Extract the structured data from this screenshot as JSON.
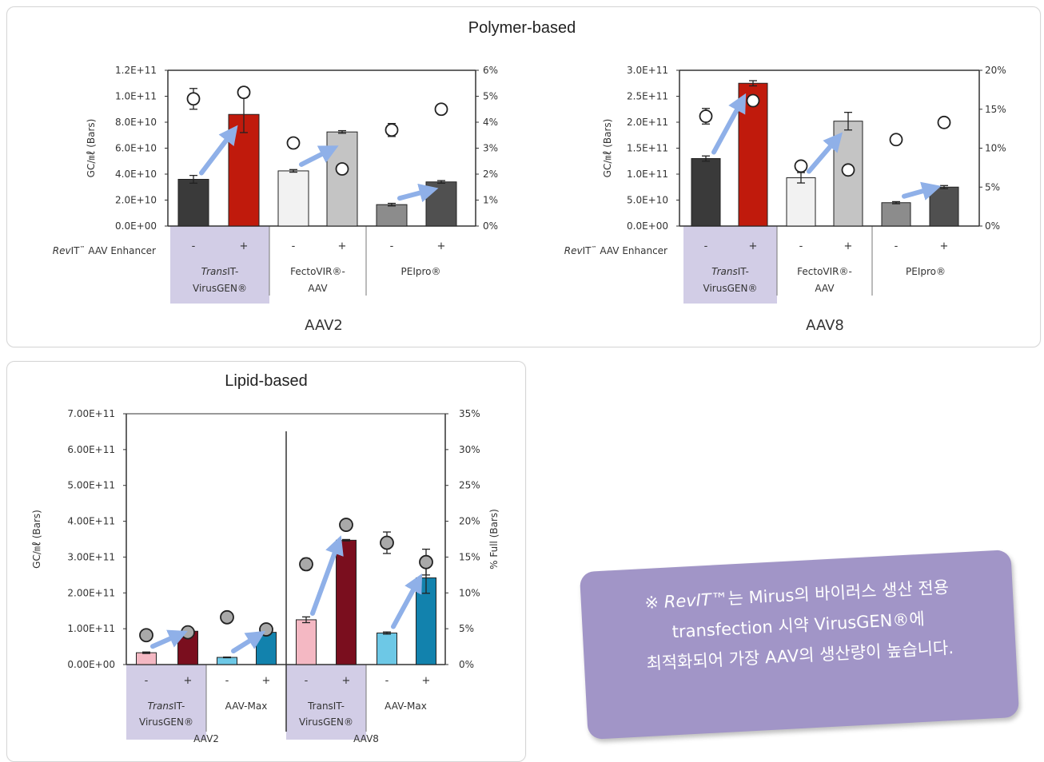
{
  "panels": {
    "polymer_title": "Polymer-based",
    "lipid_title": "Lipid-based"
  },
  "row_label_prefix": "RevIT",
  "row_label_suffix": " AAV Enhancer",
  "tm": "™",
  "note": {
    "lead": "※ ",
    "brand": "RevIT",
    "line1_rest": "™는 Mirus의 바이러스 생산 전용",
    "line2": "transfection 시약 VirusGEN®에",
    "line3": "최적화되어 가장 AAV의 생산량이 높습니다."
  },
  "colors": {
    "arrow": "#8fb0e8",
    "highlight": "#d2cde6",
    "marker_fill": "#ffffff",
    "marker_fill_lipid": "#a9a9a9"
  },
  "chart_data": [
    {
      "id": "aav2_polymer",
      "type": "bar",
      "title": "AAV2",
      "ylabel": "GC/㎖ (Bars)",
      "ylim": [
        0,
        120000000000.0
      ],
      "y_ticks": [
        "0.0E+00",
        "2.0E+10",
        "4.0E+10",
        "6.0E+10",
        "8.0E+10",
        "1.0E+11",
        "1.2E+11"
      ],
      "y2lim": [
        0,
        6
      ],
      "y2_ticks": [
        "0%",
        "1%",
        "2%",
        "3%",
        "4%",
        "5%",
        "6%"
      ],
      "enhancer_labels": [
        "-",
        "+",
        "-",
        "+",
        "-",
        "+"
      ],
      "groups": [
        {
          "label_italic": "Trans",
          "label_rest": "IT-",
          "label_line2": "VirusGEN®",
          "highlight": true
        },
        {
          "label_italic": "",
          "label_rest": "FectoVIR®-",
          "label_line2": "AAV",
          "highlight": false
        },
        {
          "label_italic": "",
          "label_rest": "PEIpro®",
          "label_line2": "",
          "highlight": false
        }
      ],
      "bars": [
        {
          "value": 36000000000.0,
          "err": 3000000000.0,
          "color": "#3a3a3a"
        },
        {
          "value": 86000000000.0,
          "err": 14000000000.0,
          "color": "#c01a0c"
        },
        {
          "value": 42500000000.0,
          "err": 1000000000.0,
          "color": "#f2f2f2"
        },
        {
          "value": 72500000000.0,
          "err": 1000000000.0,
          "color": "#c4c4c4"
        },
        {
          "value": 16500000000.0,
          "err": 1000000000.0,
          "color": "#8c8c8c"
        },
        {
          "value": 34000000000.0,
          "err": 1000000000.0,
          "color": "#505050"
        }
      ],
      "percent_full": [
        {
          "value": 4.9,
          "err": 0.4
        },
        {
          "value": 5.15,
          "err": 0.2
        },
        {
          "value": 3.2,
          "err": 0.05
        },
        {
          "value": 2.2,
          "err": 0.05
        },
        {
          "value": 3.7,
          "err": 0.25
        },
        {
          "value": 4.5,
          "err": 0.05
        }
      ]
    },
    {
      "id": "aav8_polymer",
      "type": "bar",
      "title": "AAV8",
      "ylabel": "GC/㎖ (Bars)",
      "ylim": [
        0,
        300000000000.0
      ],
      "y_ticks": [
        "0.0E+00",
        "5.0E+10",
        "1.0E+11",
        "1.5E+11",
        "2.0E+11",
        "2.5E+11",
        "3.0E+11"
      ],
      "y2lim": [
        0,
        20
      ],
      "y2_ticks": [
        "0%",
        "5%",
        "10%",
        "15%",
        "20%"
      ],
      "enhancer_labels": [
        "-",
        "+",
        "-",
        "+",
        "-",
        "+"
      ],
      "groups": [
        {
          "label_italic": "Trans",
          "label_rest": "IT-",
          "label_line2": "VirusGEN®",
          "highlight": true
        },
        {
          "label_italic": "",
          "label_rest": "FectoVIR®-",
          "label_line2": "AAV",
          "highlight": false
        },
        {
          "label_italic": "",
          "label_rest": "PEIpro®",
          "label_line2": "",
          "highlight": false
        }
      ],
      "bars": [
        {
          "value": 130000000000.0,
          "err": 5000000000.0,
          "color": "#3a3a3a"
        },
        {
          "value": 275000000000.0,
          "err": 5000000000.0,
          "color": "#c01a0c"
        },
        {
          "value": 93000000000.0,
          "err": 10000000000.0,
          "color": "#f2f2f2"
        },
        {
          "value": 202000000000.0,
          "err": 17000000000.0,
          "color": "#c4c4c4"
        },
        {
          "value": 45000000000.0,
          "err": 2000000000.0,
          "color": "#8c8c8c"
        },
        {
          "value": 75000000000.0,
          "err": 3000000000.0,
          "color": "#505050"
        }
      ],
      "percent_full": [
        {
          "value": 14.1,
          "err": 1.0
        },
        {
          "value": 16.1,
          "err": 0.3
        },
        {
          "value": 7.7,
          "err": 0.3
        },
        {
          "value": 7.2,
          "err": 0.2
        },
        {
          "value": 11.1,
          "err": 0.1
        },
        {
          "value": 13.3,
          "err": 0.1
        }
      ]
    },
    {
      "id": "lipid",
      "type": "bar",
      "ylabel": "GC/㎖ (Bars)",
      "y2label": "% Full (Bars)",
      "ylim": [
        0,
        700000000000.0
      ],
      "y_ticks": [
        "0.00E+00",
        "1.00E+11",
        "2.00E+11",
        "3.00E+11",
        "4.00E+11",
        "5.00E+11",
        "6.00E+11",
        "7.00E+11"
      ],
      "y2lim": [
        0,
        35
      ],
      "y2_ticks": [
        "0%",
        "5%",
        "10%",
        "15%",
        "20%",
        "25%",
        "30%",
        "35%"
      ],
      "enhancer_labels": [
        "-",
        "+",
        "-",
        "+",
        "-",
        "+",
        "-",
        "+"
      ],
      "groups": [
        {
          "label_italic": "Trans",
          "label_rest": "IT-",
          "label_line2": "VirusGEN®",
          "highlight": true
        },
        {
          "label_italic": "",
          "label_rest": "AAV-Max",
          "label_line2": "",
          "highlight": false
        },
        {
          "label_italic": "",
          "label_rest": "TransIT-",
          "label_line2": "VirusGEN®",
          "highlight": true
        },
        {
          "label_italic": "",
          "label_rest": "AAV-Max",
          "label_line2": "",
          "highlight": false
        }
      ],
      "serotypes": [
        "AAV2",
        "AAV8"
      ],
      "bars": [
        {
          "value": 33000000000.0,
          "err": 2000000000.0,
          "color": "#f4b8c3"
        },
        {
          "value": 93000000000.0,
          "err": 2000000000.0,
          "color": "#7a0e1e"
        },
        {
          "value": 20000000000.0,
          "err": 1000000000.0,
          "color": "#6dc8e6"
        },
        {
          "value": 90000000000.0,
          "err": 2000000000.0,
          "color": "#1282ad"
        },
        {
          "value": 125000000000.0,
          "err": 8000000000.0,
          "color": "#f4b8c3"
        },
        {
          "value": 347000000000.0,
          "err": 2000000000.0,
          "color": "#7a0e1e"
        },
        {
          "value": 88000000000.0,
          "err": 3000000000.0,
          "color": "#6dc8e6"
        },
        {
          "value": 242000000000.0,
          "err": 43000000000.0,
          "color": "#1282ad"
        }
      ],
      "percent_full": [
        {
          "value": 4.1,
          "err": 0.1
        },
        {
          "value": 4.5,
          "err": 0.1
        },
        {
          "value": 6.6,
          "err": 0.1
        },
        {
          "value": 4.9,
          "err": 0.1
        },
        {
          "value": 14.0,
          "err": 0.8
        },
        {
          "value": 19.5,
          "err": 0.2
        },
        {
          "value": 17.0,
          "err": 1.5
        },
        {
          "value": 14.3,
          "err": 1.8
        }
      ]
    }
  ]
}
